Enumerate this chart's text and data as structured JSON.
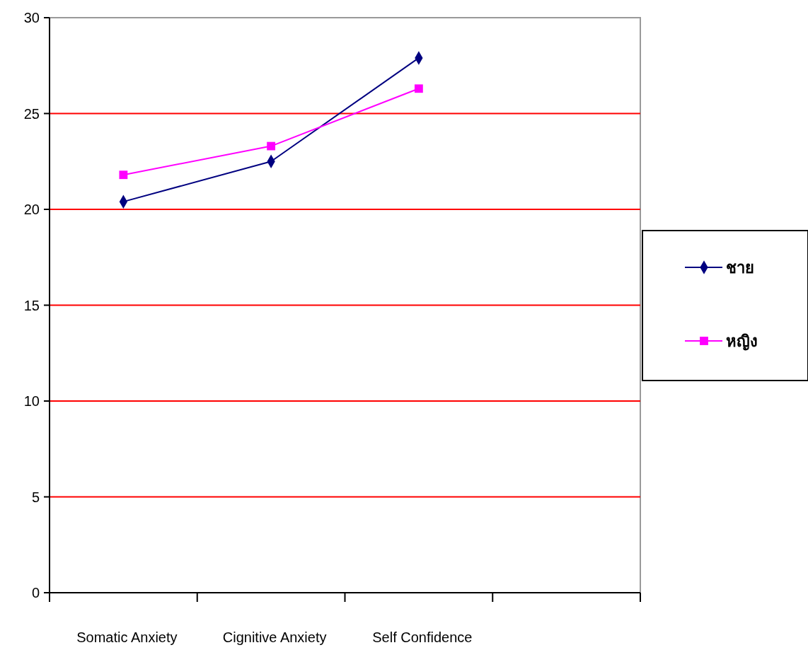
{
  "chart_data": {
    "type": "line",
    "categories": [
      "Somatic Anxiety",
      "Cignitive Anxiety",
      "Self Confidence",
      null
    ],
    "series": [
      {
        "name": "ชาย",
        "color": "#000080",
        "marker": "diamond",
        "values": [
          20.4,
          22.5,
          27.9,
          null
        ]
      },
      {
        "name": "หญิง",
        "color": "#ff00ff",
        "marker": "square",
        "values": [
          21.8,
          23.3,
          26.3,
          null
        ]
      }
    ],
    "ylim": [
      0,
      30
    ],
    "yticks": [
      0,
      5,
      10,
      15,
      20,
      25,
      30
    ],
    "grid": "y",
    "legend": "right"
  }
}
